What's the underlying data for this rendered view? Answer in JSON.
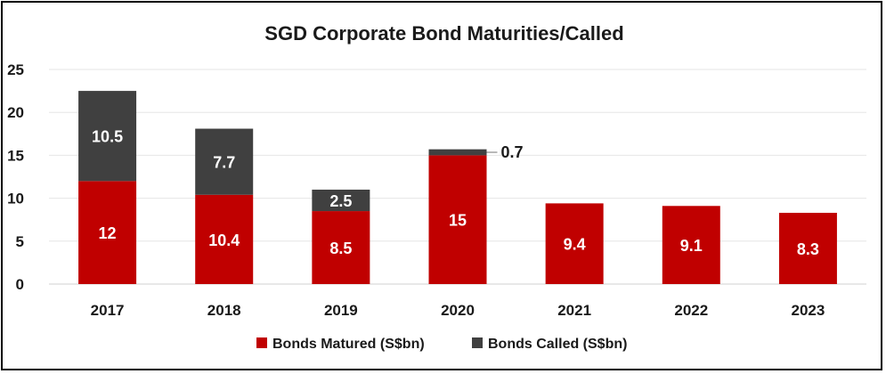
{
  "chart_data": {
    "type": "bar",
    "stacked": true,
    "title": "SGD Corporate Bond Maturities/Called",
    "xlabel": "",
    "ylabel": "",
    "categories": [
      "2017",
      "2018",
      "2019",
      "2020",
      "2021",
      "2022",
      "2023"
    ],
    "series": [
      {
        "name": "Bonds Matured (S$bn)",
        "color": "#c00000",
        "values": [
          12,
          10.4,
          8.5,
          15,
          9.4,
          9.1,
          8.3
        ],
        "labels": [
          "12",
          "10.4",
          "8.5",
          "15",
          "9.4",
          "9.1",
          "8.3"
        ]
      },
      {
        "name": "Bonds Called (S$bn)",
        "color": "#404040",
        "values": [
          10.5,
          7.7,
          2.5,
          0.7,
          null,
          null,
          null
        ],
        "labels": [
          "10.5",
          "7.7",
          "2.5",
          "0.7",
          "",
          "",
          ""
        ]
      }
    ],
    "ylim": [
      0,
      25
    ],
    "yticks": [
      "0",
      "5",
      "10",
      "15",
      "20",
      "25"
    ],
    "grid": true,
    "legend": "bottom"
  }
}
